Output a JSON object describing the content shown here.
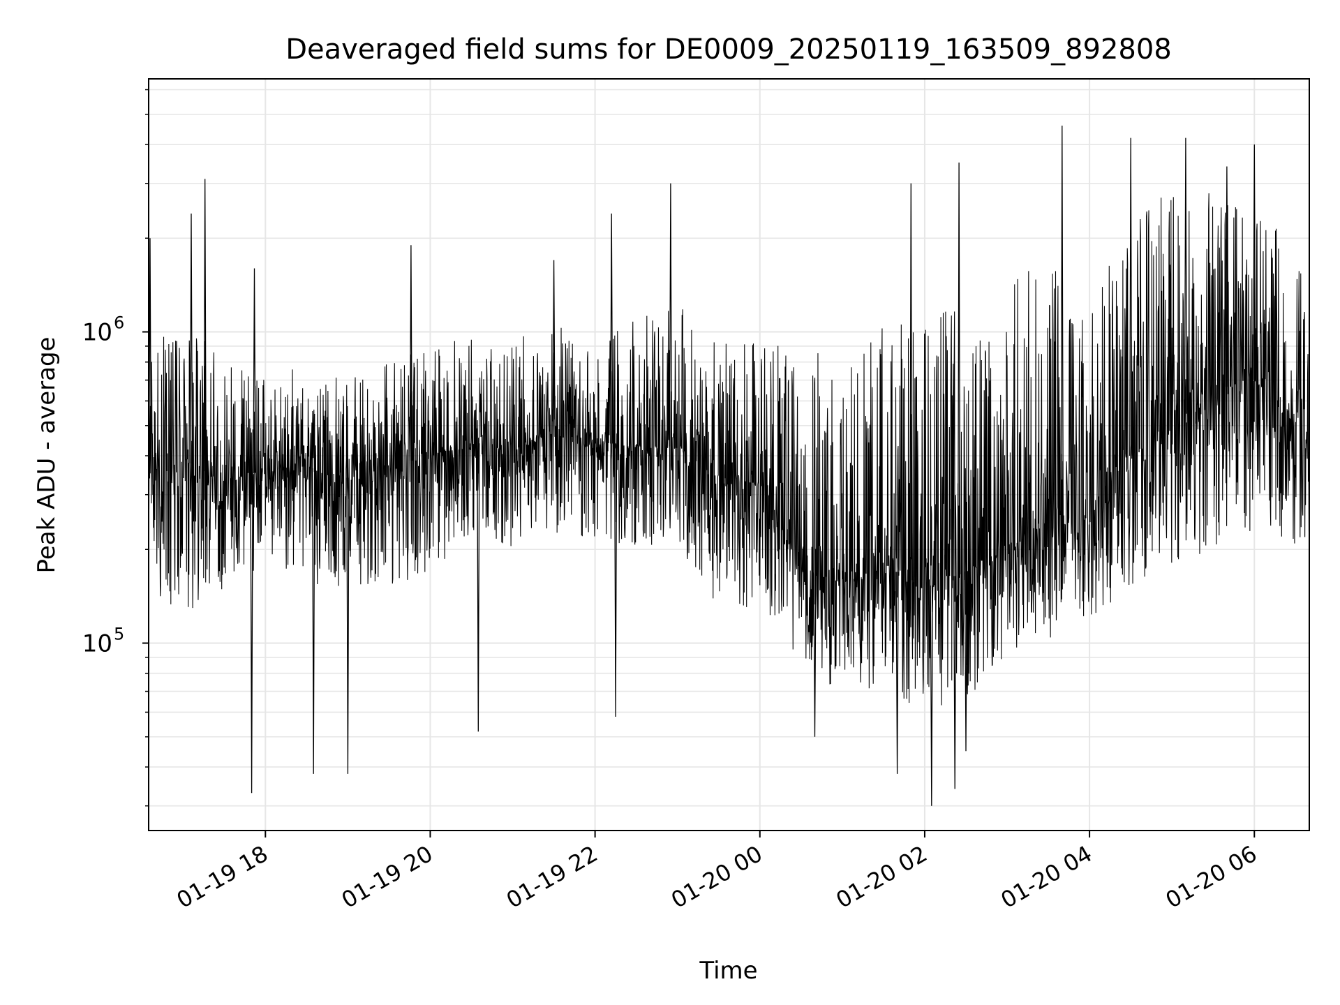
{
  "chart_data": {
    "type": "line",
    "title": "Deaveraged field sums for DE0009_20250119_163509_892808",
    "xlabel": "Time",
    "ylabel": "Peak ADU - average",
    "xlim": [
      "2025-01-19 16:35",
      "2025-01-20 06:40"
    ],
    "ylim": [
      25000,
      6500000
    ],
    "yscale": "log",
    "grid": true,
    "line_color": "#000000",
    "xticks": [
      {
        "value": "2025-01-19 18:00",
        "label": "01-19 18"
      },
      {
        "value": "2025-01-19 20:00",
        "label": "01-19 20"
      },
      {
        "value": "2025-01-19 22:00",
        "label": "01-19 22"
      },
      {
        "value": "2025-01-20 00:00",
        "label": "01-20 00"
      },
      {
        "value": "2025-01-20 02:00",
        "label": "01-20 02"
      },
      {
        "value": "2025-01-20 04:00",
        "label": "01-20 04"
      },
      {
        "value": "2025-01-20 06:00",
        "label": "01-20 06"
      }
    ],
    "yticks": [
      {
        "value": 100000,
        "label": "10",
        "exp": "5"
      },
      {
        "value": 1000000,
        "label": "10",
        "exp": "6"
      }
    ],
    "series": [
      {
        "x": [
          "2025-01-19 16:35",
          "2025-01-19 17:05",
          "2025-01-19 17:30",
          "2025-01-19 18:00",
          "2025-01-19 18:30",
          "2025-01-19 19:00",
          "2025-01-19 19:30",
          "2025-01-19 20:00",
          "2025-01-19 20:30",
          "2025-01-19 21:00",
          "2025-01-19 21:30",
          "2025-01-19 22:00",
          "2025-01-19 22:30",
          "2025-01-19 23:00",
          "2025-01-19 23:30",
          "2025-01-20 00:00",
          "2025-01-20 00:30",
          "2025-01-20 01:00",
          "2025-01-20 01:30",
          "2025-01-20 02:00",
          "2025-01-20 02:30",
          "2025-01-20 03:00",
          "2025-01-20 03:30",
          "2025-01-20 04:00",
          "2025-01-20 04:30",
          "2025-01-20 05:00",
          "2025-01-20 05:30",
          "2025-01-20 06:00",
          "2025-01-20 06:40"
        ],
        "y": [
          350000,
          380000,
          330000,
          360000,
          370000,
          340000,
          370000,
          400000,
          440000,
          430000,
          460000,
          450000,
          420000,
          430000,
          330000,
          330000,
          170000,
          160000,
          180000,
          150000,
          170000,
          210000,
          250000,
          270000,
          400000,
          500000,
          650000,
          700000,
          450000
        ],
        "y_low": [
          150000,
          120000,
          150000,
          180000,
          150000,
          150000,
          150000,
          170000,
          220000,
          200000,
          220000,
          220000,
          200000,
          200000,
          130000,
          130000,
          80000,
          70000,
          70000,
          60000,
          65000,
          90000,
          100000,
          120000,
          150000,
          180000,
          200000,
          220000,
          200000
        ],
        "y_high": [
          900000,
          1100000,
          800000,
          700000,
          800000,
          700000,
          800000,
          900000,
          1000000,
          1000000,
          1100000,
          1000000,
          1100000,
          1300000,
          900000,
          1000000,
          800000,
          1000000,
          1200000,
          1200000,
          1400000,
          1500000,
          1700000,
          1300000,
          2500000,
          2800000,
          2800000,
          2500000,
          1800000
        ],
        "spikes_up": [
          {
            "x": "2025-01-19 16:36",
            "y": 2000000
          },
          {
            "x": "2025-01-19 17:06",
            "y": 2400000
          },
          {
            "x": "2025-01-19 17:16",
            "y": 3100000
          },
          {
            "x": "2025-01-19 17:52",
            "y": 1600000
          },
          {
            "x": "2025-01-19 19:46",
            "y": 1900000
          },
          {
            "x": "2025-01-19 21:30",
            "y": 1700000
          },
          {
            "x": "2025-01-19 22:12",
            "y": 2400000
          },
          {
            "x": "2025-01-19 22:55",
            "y": 3000000
          },
          {
            "x": "2025-01-20 01:50",
            "y": 3000000
          },
          {
            "x": "2025-01-20 02:25",
            "y": 3500000
          },
          {
            "x": "2025-01-20 03:40",
            "y": 4600000
          },
          {
            "x": "2025-01-20 04:30",
            "y": 4200000
          },
          {
            "x": "2025-01-20 05:10",
            "y": 4200000
          },
          {
            "x": "2025-01-20 05:40",
            "y": 3400000
          },
          {
            "x": "2025-01-20 06:00",
            "y": 4000000
          }
        ],
        "spikes_down": [
          {
            "x": "2025-01-19 17:50",
            "y": 33000
          },
          {
            "x": "2025-01-19 18:35",
            "y": 38000
          },
          {
            "x": "2025-01-19 19:00",
            "y": 38000
          },
          {
            "x": "2025-01-19 20:35",
            "y": 52000
          },
          {
            "x": "2025-01-19 22:15",
            "y": 58000
          },
          {
            "x": "2025-01-20 00:40",
            "y": 50000
          },
          {
            "x": "2025-01-20 01:40",
            "y": 38000
          },
          {
            "x": "2025-01-20 02:05",
            "y": 30000
          },
          {
            "x": "2025-01-20 02:22",
            "y": 34000
          },
          {
            "x": "2025-01-20 02:30",
            "y": 45000
          }
        ]
      }
    ]
  }
}
